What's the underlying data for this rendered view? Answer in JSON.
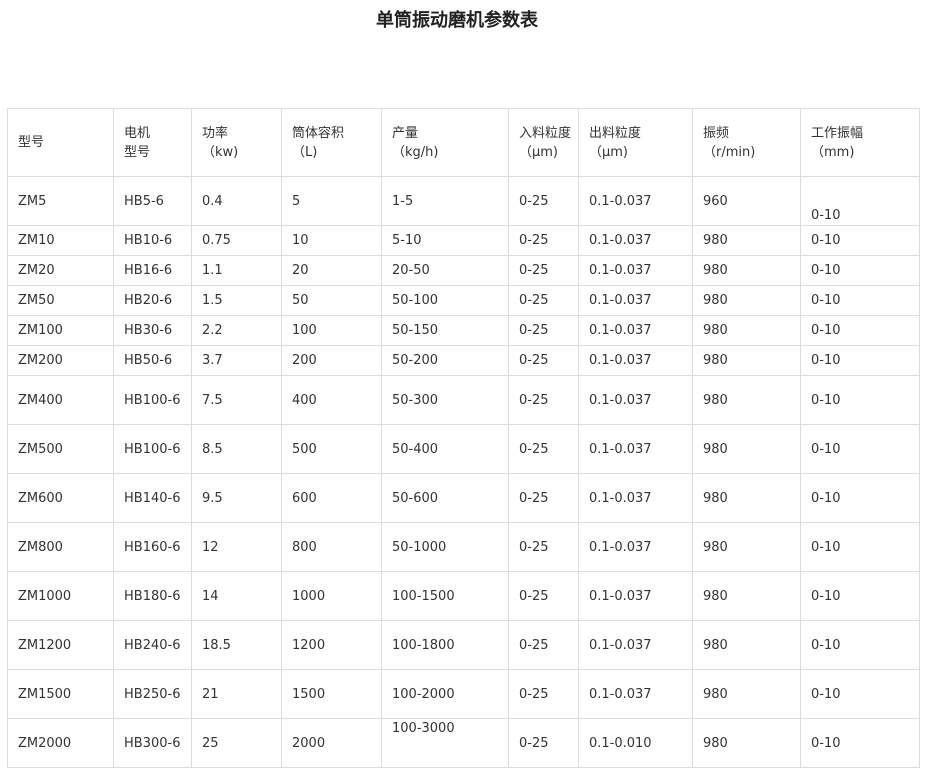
{
  "title": "单筒振动磨机参数表",
  "table": {
    "header": [
      [
        "型号"
      ],
      [
        "电机",
        "型号"
      ],
      [
        "功率",
        "（kw)"
      ],
      [
        "筒体容积",
        "（L)"
      ],
      [
        "产量",
        "（kg/h)"
      ],
      [
        "入料粒度",
        "（μm)"
      ],
      [
        "出料粒度",
        "（μm)"
      ],
      [
        "振频",
        "（r/min)"
      ],
      [
        "工作振幅",
        "（mm)"
      ]
    ],
    "rows": [
      [
        "ZM5",
        "HB5-6",
        "0.4",
        "5",
        "1-5",
        "0-25",
        "0.1-0.037",
        "960",
        "0-10"
      ],
      [
        "ZM10",
        "HB10-6",
        "0.75",
        "10",
        "5-10",
        "0-25",
        "0.1-0.037",
        "980",
        "0-10"
      ],
      [
        "ZM20",
        "HB16-6",
        "1.1",
        "20",
        "20-50",
        "0-25",
        "0.1-0.037",
        "980",
        "0-10"
      ],
      [
        "ZM50",
        "HB20-6",
        "1.5",
        "50",
        "50-100",
        "0-25",
        "0.1-0.037",
        "980",
        "0-10"
      ],
      [
        "ZM100",
        "HB30-6",
        "2.2",
        "100",
        "50-150",
        "0-25",
        "0.1-0.037",
        "980",
        "0-10"
      ],
      [
        "ZM200",
        "HB50-6",
        "3.7",
        "200",
        "50-200",
        "0-25",
        "0.1-0.037",
        "980",
        "0-10"
      ],
      [
        "ZM400",
        "HB100-6",
        "7.5",
        "400",
        "50-300",
        "0-25",
        "0.1-0.037",
        "980",
        "0-10"
      ],
      [
        "ZM500",
        "HB100-6",
        "8.5",
        "500",
        "50-400",
        "0-25",
        "0.1-0.037",
        "980",
        "0-10"
      ],
      [
        "ZM600",
        "HB140-6",
        "9.5",
        "600",
        "50-600",
        "0-25",
        "0.1-0.037",
        "980",
        "0-10"
      ],
      [
        "ZM800",
        "HB160-6",
        "12",
        "800",
        "50-1000",
        "0-25",
        "0.1-0.037",
        "980",
        "0-10"
      ],
      [
        "ZM1000",
        "HB180-6",
        "14",
        "1000",
        "100-1500",
        "0-25",
        "0.1-0.037",
        "980",
        "0-10"
      ],
      [
        "ZM1200",
        "HB240-6",
        "18.5",
        "1200",
        "100-1800",
        "0-25",
        "0.1-0.037",
        "980",
        "0-10"
      ],
      [
        "ZM1500",
        "HB250-6",
        "21",
        "1500",
        "100-2000",
        "0-25",
        "0.1-0.037",
        "980",
        "0-10"
      ],
      [
        "ZM2000",
        "HB300-6",
        "25",
        "2000",
        "100-3000",
        "0-25",
        "0.1-0.010",
        "980",
        "0-10"
      ]
    ]
  }
}
